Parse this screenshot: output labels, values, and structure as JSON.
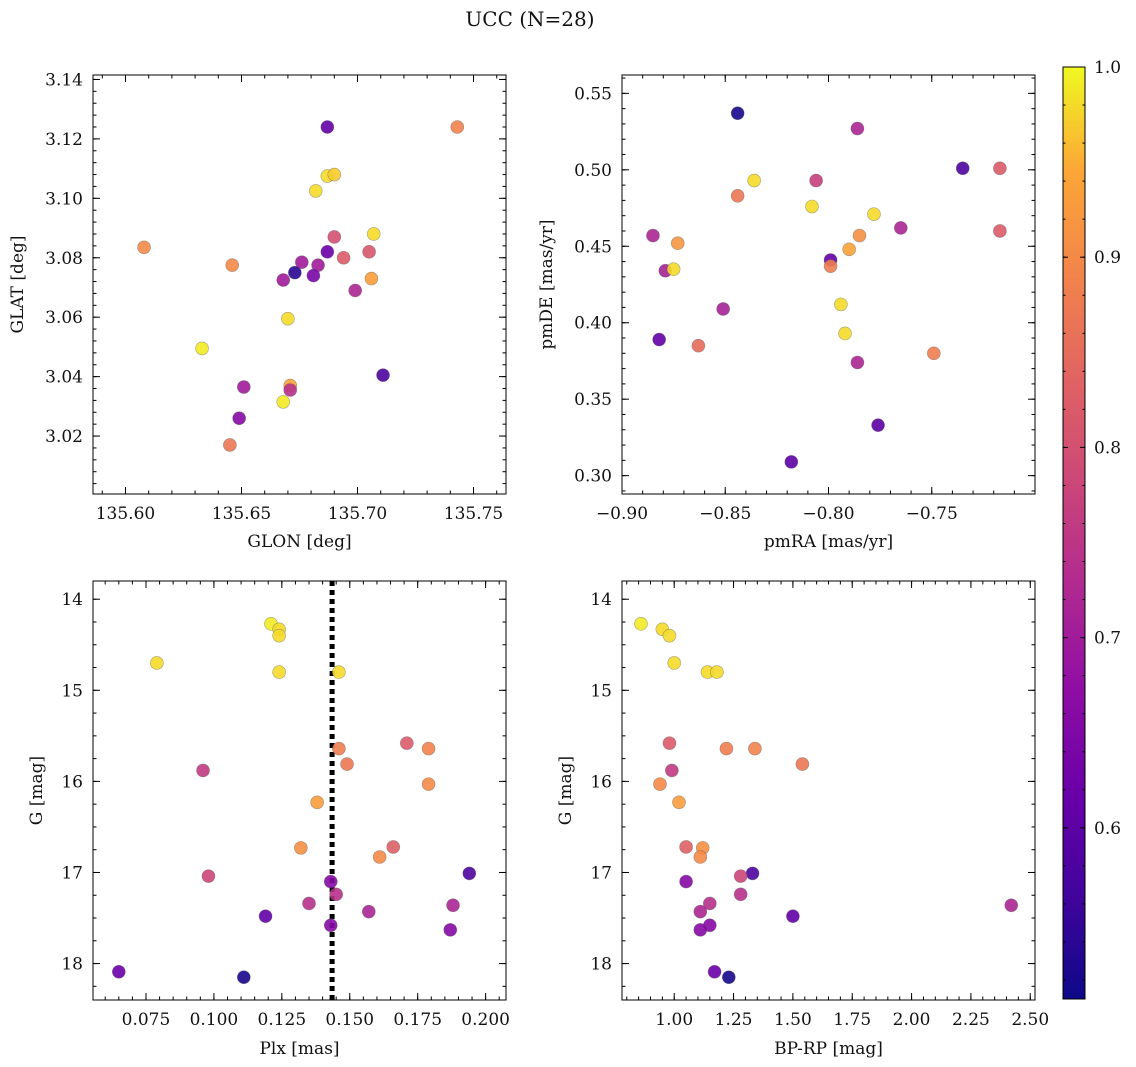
{
  "figure": {
    "title": "UCC (N=28)",
    "colorbar": {
      "colormap": "plasma",
      "range": [
        0.51,
        1.0
      ],
      "ticks": [
        0.6,
        0.7,
        0.8,
        0.9,
        1.0
      ],
      "tick_labels": [
        "0.6",
        "0.7",
        "0.8",
        "0.9",
        "1.0"
      ],
      "label": ""
    }
  },
  "chart_data": [
    {
      "type": "scatter",
      "panel": "top-left",
      "xlabel": "GLON [deg]",
      "ylabel": "GLAT [deg]",
      "xlim": [
        135.586,
        135.764
      ],
      "ylim": [
        3.0005,
        3.1415
      ],
      "y_inverted": false,
      "xticks": [
        135.6,
        135.65,
        135.7,
        135.75
      ],
      "xtick_labels": [
        "135.60",
        "135.65",
        "135.70",
        "135.75"
      ],
      "yticks": [
        3.02,
        3.04,
        3.06,
        3.08,
        3.1,
        3.12,
        3.14
      ],
      "ytick_labels": [
        "3.02",
        "3.04",
        "3.06",
        "3.08",
        "3.10",
        "3.12",
        "3.14"
      ],
      "points": [
        {
          "x": 135.608,
          "y": 3.0835,
          "c": 0.9
        },
        {
          "x": 135.646,
          "y": 3.0775,
          "c": 0.9
        },
        {
          "x": 135.743,
          "y": 3.124,
          "c": 0.89
        },
        {
          "x": 135.687,
          "y": 3.124,
          "c": 0.61
        },
        {
          "x": 135.687,
          "y": 3.1075,
          "c": 0.98
        },
        {
          "x": 135.69,
          "y": 3.108,
          "c": 0.97
        },
        {
          "x": 135.682,
          "y": 3.1025,
          "c": 0.98
        },
        {
          "x": 135.707,
          "y": 3.088,
          "c": 0.98
        },
        {
          "x": 135.69,
          "y": 3.087,
          "c": 0.8
        },
        {
          "x": 135.687,
          "y": 3.082,
          "c": 0.62
        },
        {
          "x": 135.705,
          "y": 3.082,
          "c": 0.81
        },
        {
          "x": 135.694,
          "y": 3.08,
          "c": 0.82
        },
        {
          "x": 135.676,
          "y": 3.0785,
          "c": 0.7
        },
        {
          "x": 135.683,
          "y": 3.0775,
          "c": 0.7
        },
        {
          "x": 135.673,
          "y": 3.075,
          "c": 0.54
        },
        {
          "x": 135.681,
          "y": 3.074,
          "c": 0.64
        },
        {
          "x": 135.668,
          "y": 3.0725,
          "c": 0.7
        },
        {
          "x": 135.706,
          "y": 3.073,
          "c": 0.93
        },
        {
          "x": 135.699,
          "y": 3.069,
          "c": 0.72
        },
        {
          "x": 135.67,
          "y": 3.0595,
          "c": 0.98
        },
        {
          "x": 135.633,
          "y": 3.0495,
          "c": 0.99
        },
        {
          "x": 135.711,
          "y": 3.0405,
          "c": 0.58
        },
        {
          "x": 135.671,
          "y": 3.037,
          "c": 0.94
        },
        {
          "x": 135.651,
          "y": 3.0365,
          "c": 0.7
        },
        {
          "x": 135.671,
          "y": 3.0355,
          "c": 0.74
        },
        {
          "x": 135.668,
          "y": 3.0315,
          "c": 0.99
        },
        {
          "x": 135.649,
          "y": 3.026,
          "c": 0.66
        },
        {
          "x": 135.645,
          "y": 3.017,
          "c": 0.87
        }
      ]
    },
    {
      "type": "scatter",
      "panel": "top-right",
      "xlabel": "pmRA [mas/yr]",
      "ylabel": "pmDE [mas/yr]",
      "xlim": [
        -0.9,
        -0.7
      ],
      "ylim": [
        0.288,
        0.562
      ],
      "y_inverted": false,
      "xticks": [
        -0.9,
        -0.85,
        -0.8,
        -0.75
      ],
      "xtick_labels": [
        "−0.90",
        "−0.85",
        "−0.80",
        "−0.75"
      ],
      "yticks": [
        0.3,
        0.35,
        0.4,
        0.45,
        0.5,
        0.55
      ],
      "ytick_labels": [
        "0.30",
        "0.35",
        "0.40",
        "0.45",
        "0.50",
        "0.55"
      ],
      "points": [
        {
          "x": -0.844,
          "y": 0.537,
          "c": 0.52
        },
        {
          "x": -0.786,
          "y": 0.527,
          "c": 0.72
        },
        {
          "x": -0.735,
          "y": 0.501,
          "c": 0.58
        },
        {
          "x": -0.717,
          "y": 0.501,
          "c": 0.82
        },
        {
          "x": -0.836,
          "y": 0.493,
          "c": 0.98
        },
        {
          "x": -0.806,
          "y": 0.493,
          "c": 0.77
        },
        {
          "x": -0.844,
          "y": 0.483,
          "c": 0.87
        },
        {
          "x": -0.808,
          "y": 0.476,
          "c": 0.98
        },
        {
          "x": -0.778,
          "y": 0.471,
          "c": 0.98
        },
        {
          "x": -0.765,
          "y": 0.462,
          "c": 0.72
        },
        {
          "x": -0.717,
          "y": 0.46,
          "c": 0.82
        },
        {
          "x": -0.885,
          "y": 0.457,
          "c": 0.72
        },
        {
          "x": -0.785,
          "y": 0.457,
          "c": 0.91
        },
        {
          "x": -0.873,
          "y": 0.452,
          "c": 0.92
        },
        {
          "x": -0.79,
          "y": 0.448,
          "c": 0.94
        },
        {
          "x": -0.799,
          "y": 0.441,
          "c": 0.61
        },
        {
          "x": -0.799,
          "y": 0.437,
          "c": 0.88
        },
        {
          "x": -0.879,
          "y": 0.434,
          "c": 0.71
        },
        {
          "x": -0.875,
          "y": 0.435,
          "c": 0.98
        },
        {
          "x": -0.794,
          "y": 0.412,
          "c": 0.98
        },
        {
          "x": -0.851,
          "y": 0.409,
          "c": 0.71
        },
        {
          "x": -0.792,
          "y": 0.393,
          "c": 0.98
        },
        {
          "x": -0.882,
          "y": 0.389,
          "c": 0.61
        },
        {
          "x": -0.863,
          "y": 0.385,
          "c": 0.85
        },
        {
          "x": -0.749,
          "y": 0.38,
          "c": 0.88
        },
        {
          "x": -0.786,
          "y": 0.374,
          "c": 0.72
        },
        {
          "x": -0.776,
          "y": 0.333,
          "c": 0.6
        },
        {
          "x": -0.818,
          "y": 0.309,
          "c": 0.6
        }
      ]
    },
    {
      "type": "scatter",
      "panel": "bottom-left",
      "xlabel": "Plx [mas]",
      "ylabel": "G [mag]",
      "xlim": [
        0.0555,
        0.2075
      ],
      "ylim": [
        13.8,
        18.4
      ],
      "y_inverted": true,
      "xticks": [
        0.075,
        0.1,
        0.125,
        0.15,
        0.175,
        0.2
      ],
      "xtick_labels": [
        "0.075",
        "0.100",
        "0.125",
        "0.150",
        "0.175",
        "0.200"
      ],
      "yticks": [
        14,
        15,
        16,
        17,
        18
      ],
      "ytick_labels": [
        "14",
        "15",
        "16",
        "17",
        "18"
      ],
      "vline": {
        "x": 0.1435,
        "style": "dotted"
      },
      "points": [
        {
          "x": 0.121,
          "y": 14.27,
          "c": 0.99
        },
        {
          "x": 0.124,
          "y": 14.33,
          "c": 0.98
        },
        {
          "x": 0.124,
          "y": 14.4,
          "c": 0.98
        },
        {
          "x": 0.079,
          "y": 14.7,
          "c": 0.98
        },
        {
          "x": 0.124,
          "y": 14.8,
          "c": 0.98
        },
        {
          "x": 0.146,
          "y": 14.8,
          "c": 0.98
        },
        {
          "x": 0.171,
          "y": 15.58,
          "c": 0.82
        },
        {
          "x": 0.146,
          "y": 15.64,
          "c": 0.88
        },
        {
          "x": 0.179,
          "y": 15.64,
          "c": 0.89
        },
        {
          "x": 0.149,
          "y": 15.81,
          "c": 0.87
        },
        {
          "x": 0.096,
          "y": 15.88,
          "c": 0.76
        },
        {
          "x": 0.179,
          "y": 16.03,
          "c": 0.9
        },
        {
          "x": 0.138,
          "y": 16.23,
          "c": 0.93
        },
        {
          "x": 0.166,
          "y": 16.72,
          "c": 0.83
        },
        {
          "x": 0.132,
          "y": 16.73,
          "c": 0.91
        },
        {
          "x": 0.161,
          "y": 16.83,
          "c": 0.9
        },
        {
          "x": 0.194,
          "y": 17.01,
          "c": 0.58
        },
        {
          "x": 0.098,
          "y": 17.04,
          "c": 0.78
        },
        {
          "x": 0.143,
          "y": 17.1,
          "c": 0.66
        },
        {
          "x": 0.145,
          "y": 17.24,
          "c": 0.74
        },
        {
          "x": 0.135,
          "y": 17.34,
          "c": 0.74
        },
        {
          "x": 0.188,
          "y": 17.36,
          "c": 0.72
        },
        {
          "x": 0.157,
          "y": 17.43,
          "c": 0.72
        },
        {
          "x": 0.119,
          "y": 17.48,
          "c": 0.61
        },
        {
          "x": 0.143,
          "y": 17.58,
          "c": 0.66
        },
        {
          "x": 0.187,
          "y": 17.63,
          "c": 0.66
        },
        {
          "x": 0.065,
          "y": 18.09,
          "c": 0.62
        },
        {
          "x": 0.111,
          "y": 18.15,
          "c": 0.52
        }
      ]
    },
    {
      "type": "scatter",
      "panel": "bottom-right",
      "xlabel": "BP-RP [mag]",
      "ylabel": "G [mag]",
      "xlim": [
        0.78,
        2.52
      ],
      "ylim": [
        13.8,
        18.4
      ],
      "y_inverted": true,
      "xticks": [
        1.0,
        1.25,
        1.5,
        1.75,
        2.0,
        2.25,
        2.5
      ],
      "xtick_labels": [
        "1.00",
        "1.25",
        "1.50",
        "1.75",
        "2.00",
        "2.25",
        "2.50"
      ],
      "yticks": [
        14,
        15,
        16,
        17,
        18
      ],
      "ytick_labels": [
        "14",
        "15",
        "16",
        "17",
        "18"
      ],
      "points": [
        {
          "x": 0.86,
          "y": 14.27,
          "c": 0.99
        },
        {
          "x": 0.95,
          "y": 14.33,
          "c": 0.98
        },
        {
          "x": 0.98,
          "y": 14.4,
          "c": 0.98
        },
        {
          "x": 1.0,
          "y": 14.7,
          "c": 0.98
        },
        {
          "x": 1.14,
          "y": 14.8,
          "c": 0.98
        },
        {
          "x": 1.18,
          "y": 14.8,
          "c": 0.98
        },
        {
          "x": 0.98,
          "y": 15.58,
          "c": 0.82
        },
        {
          "x": 1.22,
          "y": 15.64,
          "c": 0.88
        },
        {
          "x": 1.34,
          "y": 15.64,
          "c": 0.89
        },
        {
          "x": 1.54,
          "y": 15.81,
          "c": 0.87
        },
        {
          "x": 0.99,
          "y": 15.88,
          "c": 0.76
        },
        {
          "x": 0.94,
          "y": 16.03,
          "c": 0.9
        },
        {
          "x": 1.02,
          "y": 16.23,
          "c": 0.93
        },
        {
          "x": 1.05,
          "y": 16.72,
          "c": 0.83
        },
        {
          "x": 1.12,
          "y": 16.73,
          "c": 0.91
        },
        {
          "x": 1.11,
          "y": 16.83,
          "c": 0.9
        },
        {
          "x": 1.33,
          "y": 17.01,
          "c": 0.58
        },
        {
          "x": 1.28,
          "y": 17.04,
          "c": 0.78
        },
        {
          "x": 1.05,
          "y": 17.1,
          "c": 0.66
        },
        {
          "x": 1.28,
          "y": 17.24,
          "c": 0.74
        },
        {
          "x": 1.15,
          "y": 17.34,
          "c": 0.74
        },
        {
          "x": 2.42,
          "y": 17.36,
          "c": 0.72
        },
        {
          "x": 1.11,
          "y": 17.43,
          "c": 0.72
        },
        {
          "x": 1.5,
          "y": 17.48,
          "c": 0.61
        },
        {
          "x": 1.15,
          "y": 17.58,
          "c": 0.66
        },
        {
          "x": 1.11,
          "y": 17.63,
          "c": 0.66
        },
        {
          "x": 1.17,
          "y": 18.09,
          "c": 0.62
        },
        {
          "x": 1.23,
          "y": 18.15,
          "c": 0.52
        }
      ]
    }
  ]
}
